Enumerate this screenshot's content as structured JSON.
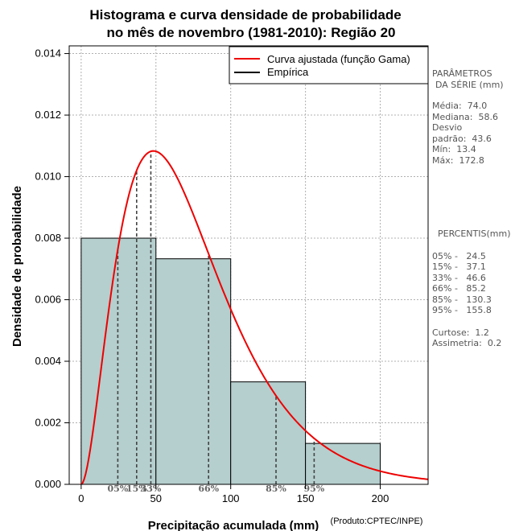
{
  "chart_data": {
    "type": "histogram",
    "title_line1": "Histograma e curva densidade de probabilidade",
    "title_line2": "no mês de novembro (1981-2010): Região 20",
    "xlabel": "Precipitação acumulada (mm)",
    "ylabel": "Densidade de probabilidade",
    "credit": "(Produto:CPTEC/INPE)",
    "xlim": [
      -8,
      232
    ],
    "ylim": [
      0,
      0.01425
    ],
    "x_ticks": [
      0,
      50,
      100,
      150,
      200
    ],
    "y_ticks": [
      0.0,
      0.002,
      0.004,
      0.006,
      0.008,
      0.01,
      0.012,
      0.014
    ],
    "y_tick_labels": [
      "0.000",
      "0.002",
      "0.004",
      "0.006",
      "0.008",
      "0.010",
      "0.012",
      "0.014"
    ],
    "grid": true,
    "bins": [
      {
        "start": 0,
        "end": 50,
        "density": 0.008
      },
      {
        "start": 50,
        "end": 100,
        "density": 0.00733
      },
      {
        "start": 100,
        "end": 150,
        "density": 0.00333
      },
      {
        "start": 150,
        "end": 200,
        "density": 0.00133
      }
    ],
    "bar_color": "#b5cece",
    "curve_color": "#ee0000",
    "gamma": {
      "shape": 2.88,
      "scale": 25.7
    },
    "percentile_markers": [
      {
        "label": "05%",
        "value": 24.5
      },
      {
        "label": "15%",
        "value": 37.1
      },
      {
        "label": "33%",
        "value": 46.6
      },
      {
        "label": "66%",
        "value": 85.2
      },
      {
        "label": "85%",
        "value": 130.3
      },
      {
        "label": "95%",
        "value": 155.8
      }
    ],
    "legend": [
      {
        "label": "Curva ajustada (função Gama)",
        "color": "#ee0000"
      },
      {
        "label": "Empírica",
        "color": "#000000"
      }
    ],
    "legend_position": "top-right"
  },
  "side_panel": {
    "params_title_1": "PARÂMETROS",
    "params_title_2": "DA SÉRIE (mm)",
    "media": "Média:  74.0",
    "mediana": "Mediana:  58.6",
    "desvio_1": "Desvio",
    "desvio_2": "padrão:  43.6",
    "min": "Mín:  13.4",
    "max": "Máx:  172.8",
    "percentis_title": "PERCENTIS(mm)",
    "p05": "05% -   24.5",
    "p15": "15% -   37.1",
    "p33": "33% -   46.6",
    "p66": "66% -   85.2",
    "p85": "85% -   130.3",
    "p95": "95% -   155.8",
    "curtose": "Curtose:  1.2",
    "assimetria": "Assimetria:  0.2"
  }
}
